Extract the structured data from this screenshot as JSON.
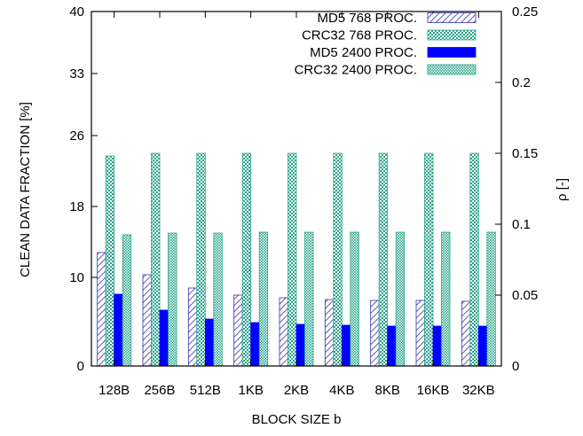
{
  "chart_data": {
    "type": "bar",
    "title": "",
    "xlabel": "BLOCK SIZE b",
    "ylabel": "CLEAN DATA FRACTION [%]",
    "y2label": "ρ [-]",
    "categories": [
      "128B",
      "256B",
      "512B",
      "1KB",
      "2KB",
      "4KB",
      "8KB",
      "16KB",
      "32KB"
    ],
    "ylim": [
      0,
      40
    ],
    "yticks": [
      "0",
      "10",
      "18",
      "26",
      "33",
      "40"
    ],
    "y2lim": [
      0,
      0.25
    ],
    "y2ticks": [
      "0",
      "0.05",
      "0.1",
      "0.15",
      "0.2",
      "0.25"
    ],
    "grid": false,
    "legend_position": "top-right",
    "series": [
      {
        "name": "MD5 768 PROC.",
        "pattern": "hatch-blue",
        "color": "#3333aa",
        "values": [
          12.8,
          10.3,
          8.8,
          8.0,
          7.7,
          7.5,
          7.4,
          7.4,
          7.3
        ]
      },
      {
        "name": "CRC32 768 PROC.",
        "pattern": "check-teal",
        "color": "#2aa58a",
        "values": [
          23.7,
          24.0,
          24.0,
          24.0,
          24.0,
          24.0,
          24.0,
          24.0,
          24.0
        ]
      },
      {
        "name": "MD5 2400 PROC.",
        "pattern": "solid-blue",
        "color": "#0000ff",
        "values": [
          8.1,
          6.3,
          5.3,
          4.9,
          4.7,
          4.6,
          4.5,
          4.5,
          4.5
        ]
      },
      {
        "name": "CRC32 2400 PROC.",
        "pattern": "check-teal-dense",
        "color": "#2aa58a",
        "values": [
          14.8,
          15.0,
          15.0,
          15.1,
          15.1,
          15.1,
          15.1,
          15.1,
          15.1
        ]
      }
    ]
  }
}
